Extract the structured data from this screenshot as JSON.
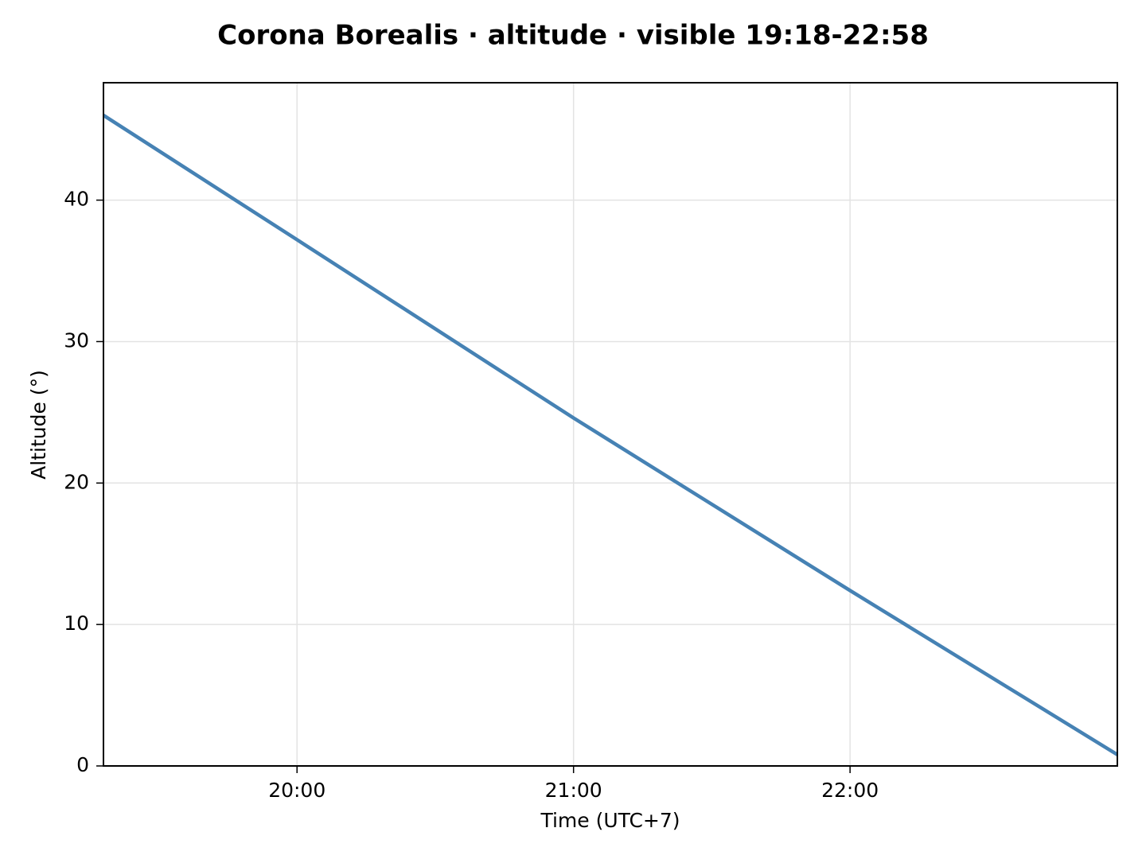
{
  "chart_data": {
    "type": "line",
    "title": "Corona Borealis · altitude · visible 19:18-22:58",
    "x_label": "Time (UTC+7)",
    "y_label": "Altitude (°)",
    "x": [
      "19:18",
      "20:00",
      "21:00",
      "22:00",
      "22:58"
    ],
    "values": [
      46.0,
      37.2,
      24.6,
      12.4,
      0.8
    ],
    "color": "#4682b4",
    "xlim": [
      "19:18",
      "22:58"
    ],
    "xticks": [
      "20:00",
      "21:00",
      "22:00"
    ],
    "ylim": [
      0,
      48.3
    ],
    "yticks": [
      0,
      10,
      20,
      30,
      40
    ],
    "grid": true
  }
}
